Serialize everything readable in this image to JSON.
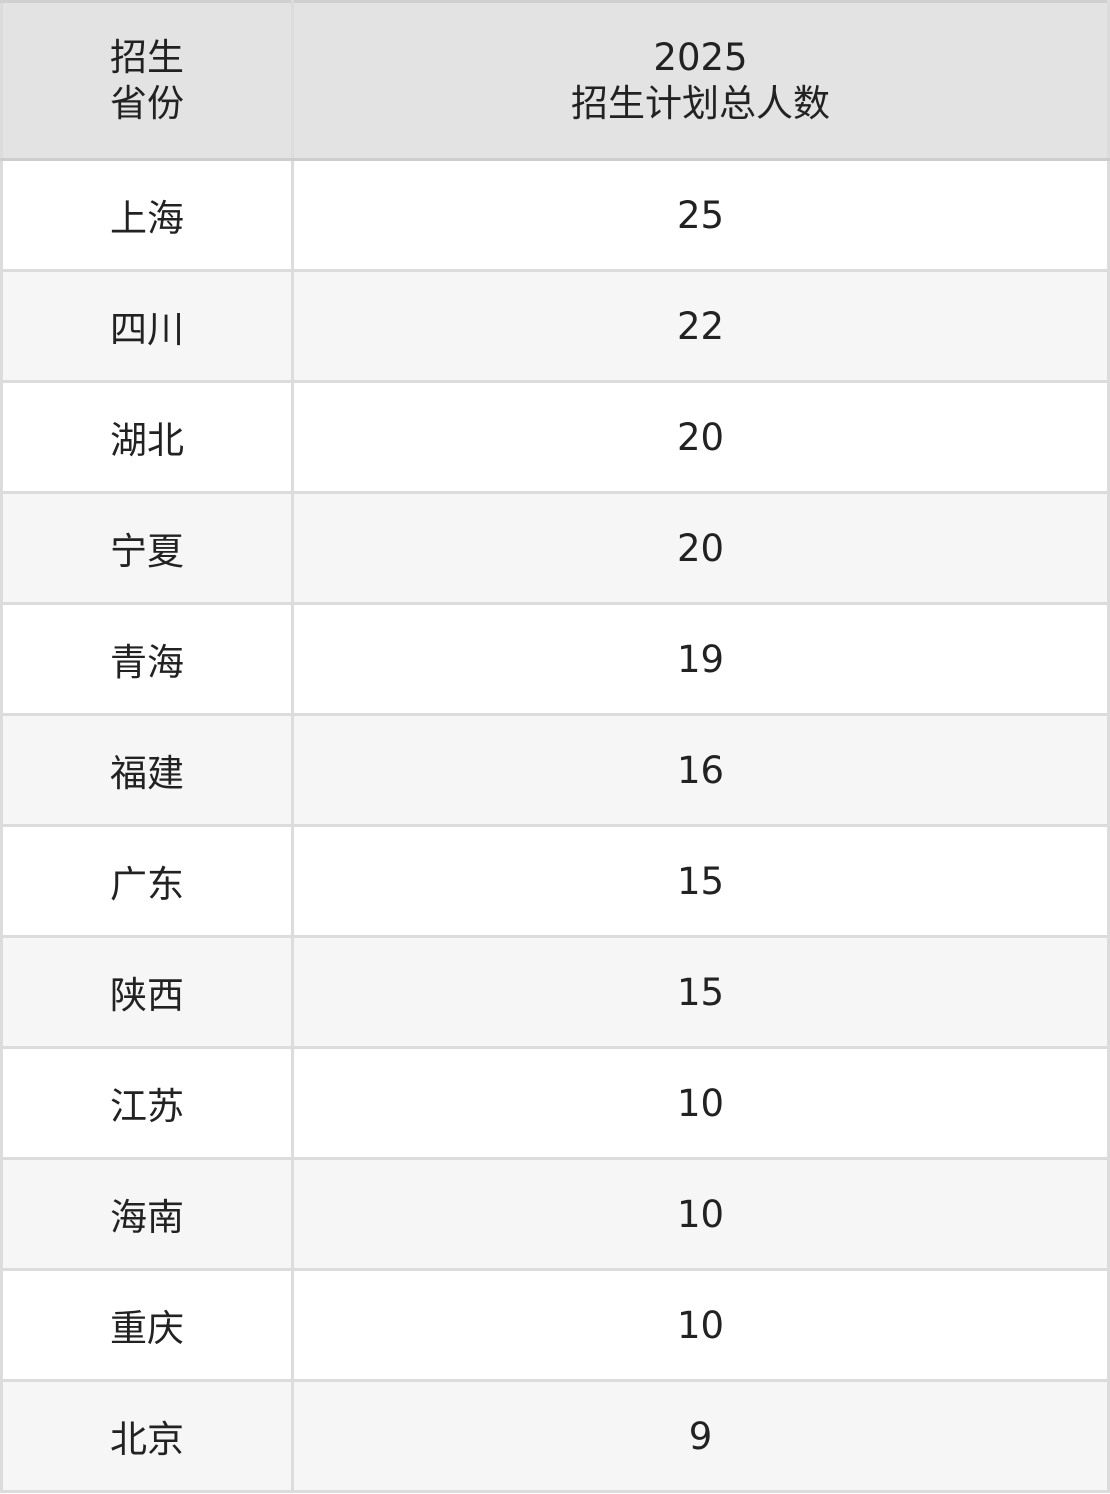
{
  "header": {
    "province": [
      "招生",
      "省份"
    ],
    "plan": [
      "2025",
      "招生计划总人数"
    ]
  },
  "rows": [
    {
      "province": "上海",
      "count": "25"
    },
    {
      "province": "四川",
      "count": "22"
    },
    {
      "province": "湖北",
      "count": "20"
    },
    {
      "province": "宁夏",
      "count": "20"
    },
    {
      "province": "青海",
      "count": "19"
    },
    {
      "province": "福建",
      "count": "16"
    },
    {
      "province": "广东",
      "count": "15"
    },
    {
      "province": "陕西",
      "count": "15"
    },
    {
      "province": "江苏",
      "count": "10"
    },
    {
      "province": "海南",
      "count": "10"
    },
    {
      "province": "重庆",
      "count": "10"
    },
    {
      "province": "北京",
      "count": "9"
    }
  ]
}
